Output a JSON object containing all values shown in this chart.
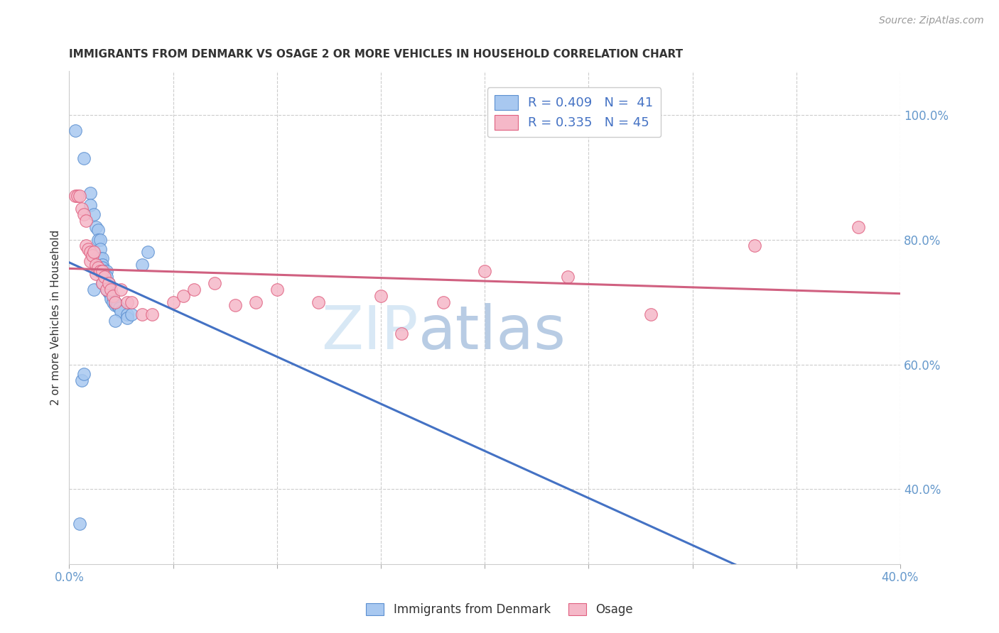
{
  "title": "IMMIGRANTS FROM DENMARK VS OSAGE 2 OR MORE VEHICLES IN HOUSEHOLD CORRELATION CHART",
  "source": "Source: ZipAtlas.com",
  "ylabel": "2 or more Vehicles in Household",
  "xlim": [
    0.0,
    0.4
  ],
  "ylim": [
    0.28,
    1.07
  ],
  "xtick_positions": [
    0.0,
    0.05,
    0.1,
    0.15,
    0.2,
    0.25,
    0.3,
    0.35,
    0.4
  ],
  "xticklabels": [
    "0.0%",
    "",
    "",
    "",
    "",
    "",
    "",
    "",
    "40.0%"
  ],
  "yticks_right": [
    1.0,
    0.8,
    0.6,
    0.4
  ],
  "ytick_labels_right": [
    "100.0%",
    "80.0%",
    "60.0%",
    "40.0%"
  ],
  "blue_color": "#A8C8F0",
  "pink_color": "#F5B8C8",
  "blue_edge_color": "#5B8FD0",
  "pink_edge_color": "#E06080",
  "blue_line_color": "#4472C4",
  "pink_line_color": "#D06080",
  "background_color": "#FFFFFF",
  "grid_color": "#CCCCCC",
  "title_color": "#333333",
  "axis_tick_color": "#6699CC",
  "source_color": "#999999",
  "watermark_zip_color": "#D8E8F5",
  "watermark_atlas_color": "#B8CCE4",
  "legend_label_color": "#4472C4",
  "legend_edge_color": "#CCCCCC",
  "blue_scatter_x": [
    0.003,
    0.007,
    0.01,
    0.01,
    0.012,
    0.013,
    0.014,
    0.014,
    0.015,
    0.015,
    0.015,
    0.016,
    0.016,
    0.016,
    0.017,
    0.017,
    0.018,
    0.018,
    0.019,
    0.019,
    0.019,
    0.02,
    0.02,
    0.021,
    0.022,
    0.022,
    0.023,
    0.024,
    0.025,
    0.028,
    0.028,
    0.03,
    0.005,
    0.006,
    0.012,
    0.016,
    0.018,
    0.022,
    0.035,
    0.038,
    0.007
  ],
  "blue_scatter_y": [
    0.975,
    0.93,
    0.875,
    0.855,
    0.84,
    0.82,
    0.815,
    0.8,
    0.8,
    0.785,
    0.77,
    0.77,
    0.76,
    0.755,
    0.75,
    0.745,
    0.75,
    0.74,
    0.73,
    0.72,
    0.715,
    0.71,
    0.705,
    0.7,
    0.7,
    0.695,
    0.695,
    0.69,
    0.685,
    0.68,
    0.675,
    0.68,
    0.345,
    0.575,
    0.72,
    0.73,
    0.72,
    0.67,
    0.76,
    0.78,
    0.585
  ],
  "pink_scatter_x": [
    0.003,
    0.004,
    0.005,
    0.006,
    0.007,
    0.008,
    0.008,
    0.009,
    0.01,
    0.01,
    0.011,
    0.012,
    0.013,
    0.013,
    0.014,
    0.015,
    0.016,
    0.016,
    0.017,
    0.018,
    0.019,
    0.02,
    0.021,
    0.022,
    0.025,
    0.028,
    0.03,
    0.035,
    0.04,
    0.05,
    0.055,
    0.06,
    0.07,
    0.08,
    0.09,
    0.1,
    0.12,
    0.15,
    0.16,
    0.18,
    0.2,
    0.24,
    0.28,
    0.33,
    0.38
  ],
  "pink_scatter_y": [
    0.87,
    0.87,
    0.87,
    0.85,
    0.84,
    0.83,
    0.79,
    0.785,
    0.78,
    0.765,
    0.775,
    0.78,
    0.76,
    0.745,
    0.755,
    0.75,
    0.75,
    0.73,
    0.74,
    0.72,
    0.73,
    0.72,
    0.71,
    0.7,
    0.72,
    0.7,
    0.7,
    0.68,
    0.68,
    0.7,
    0.71,
    0.72,
    0.73,
    0.695,
    0.7,
    0.72,
    0.7,
    0.71,
    0.65,
    0.7,
    0.75,
    0.74,
    0.68,
    0.79,
    0.82
  ],
  "legend_r_blue": "R = 0.409",
  "legend_n_blue": "N =  41",
  "legend_r_pink": "R = 0.335",
  "legend_n_pink": "N = 45",
  "bottom_legend_labels": [
    "Immigrants from Denmark",
    "Osage"
  ]
}
